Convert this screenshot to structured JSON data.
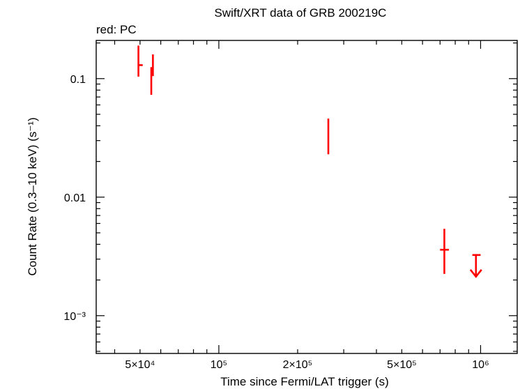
{
  "chart_data": {
    "type": "scatter",
    "title": "Swift/XRT data of GRB 200219C",
    "subtitle": "red: PC",
    "xlabel": "Time since Fermi/LAT trigger (s)",
    "ylabel": "Count Rate (0.3–10 keV) (s⁻¹)",
    "xscale": "log",
    "yscale": "log",
    "xlim": [
      34000,
      1380000
    ],
    "ylim": [
      0.00048,
      0.21
    ],
    "grid": false,
    "x_ticks": [
      {
        "value": 50000,
        "label": "5×10⁴"
      },
      {
        "value": 100000,
        "label": "10⁵"
      },
      {
        "value": 200000,
        "label": "2×10⁵"
      },
      {
        "value": 500000,
        "label": "5×10⁵"
      },
      {
        "value": 1000000,
        "label": "10⁶"
      }
    ],
    "y_ticks": [
      {
        "value": 0.1,
        "label": "0.1"
      },
      {
        "value": 0.01,
        "label": "0.01"
      },
      {
        "value": 0.001,
        "label": "10⁻³"
      }
    ],
    "series": [
      {
        "color": "#ff0000",
        "points": [
          {
            "x": 49300,
            "y": 0.135,
            "x_lo": 49100,
            "x_hi": 49500,
            "y_lo": 0.104,
            "y_hi": 0.19
          },
          {
            "x": 50400,
            "y": 0.13,
            "x_lo": 49600,
            "x_hi": 51200,
            "y_lo": 0.13,
            "y_hi": 0.13
          },
          {
            "x": 55200,
            "y": 0.1,
            "x_lo": 55000,
            "x_hi": 55400,
            "y_lo": 0.073,
            "y_hi": 0.125
          },
          {
            "x": 56000,
            "y": 0.12,
            "x_lo": 55800,
            "x_hi": 56200,
            "y_lo": 0.105,
            "y_hi": 0.16
          },
          {
            "x": 262000,
            "y": 0.034,
            "x_lo": 261000,
            "x_hi": 263000,
            "y_lo": 0.023,
            "y_hi": 0.046
          },
          {
            "x": 727000,
            "y": 0.0036,
            "x_lo": 700000,
            "x_hi": 757000,
            "y_lo": 0.00225,
            "y_hi": 0.0054
          }
        ],
        "upper_limits": [
          {
            "x": 960000,
            "y": 0.00325,
            "x_lo": 930000,
            "x_hi": 1000000
          }
        ]
      }
    ]
  }
}
